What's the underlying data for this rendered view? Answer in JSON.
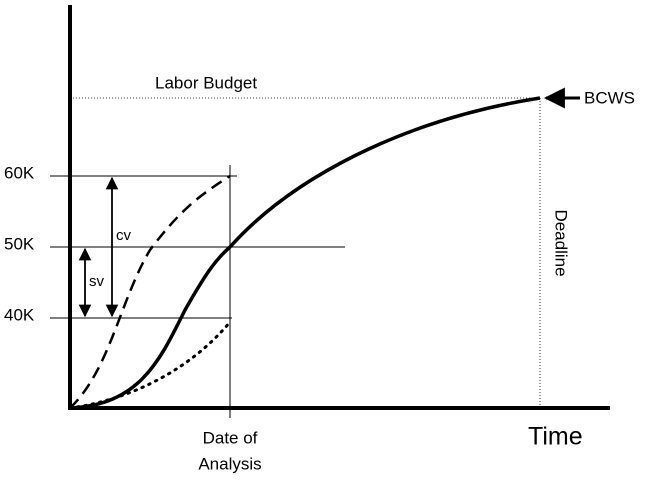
{
  "labels": {
    "labor_budget": "Labor Budget",
    "bcws": "BCWS",
    "deadline": "Deadline",
    "time": "Time",
    "date_of_analysis": [
      "Date of",
      "Analysis"
    ],
    "cv": "cv",
    "sv": "sv",
    "ticks": [
      "60K",
      "50K",
      "40K"
    ]
  }
}
